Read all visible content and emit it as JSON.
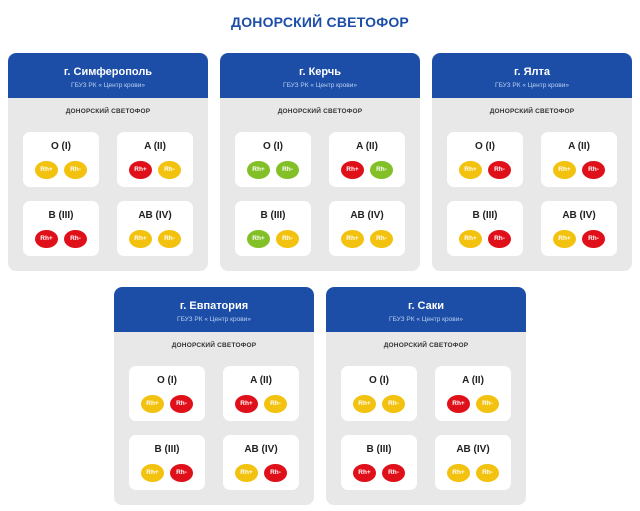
{
  "page": {
    "title": "ДОНОРСКИЙ СВЕТОФОР"
  },
  "colors": {
    "yellow": "#f2c20f",
    "red": "#e0101a",
    "green": "#83c028",
    "header_blue": "#1c4ea8"
  },
  "cards": [
    {
      "city": "г. Симферополь",
      "org": "ГБУЗ РК « Центр крови»",
      "subtitle": "ДОНОРСКИЙ СВЕТОФОР",
      "groups": [
        {
          "label": "O (I)",
          "rh_plus": {
            "text": "Rh+",
            "status": "yellow"
          },
          "rh_minus": {
            "text": "Rh-",
            "status": "yellow"
          }
        },
        {
          "label": "A (II)",
          "rh_plus": {
            "text": "Rh+",
            "status": "red"
          },
          "rh_minus": {
            "text": "Rh-",
            "status": "yellow"
          }
        },
        {
          "label": "B (III)",
          "rh_plus": {
            "text": "Rh+",
            "status": "red"
          },
          "rh_minus": {
            "text": "Rh-",
            "status": "red"
          }
        },
        {
          "label": "AB (IV)",
          "rh_plus": {
            "text": "Rh+",
            "status": "yellow"
          },
          "rh_minus": {
            "text": "Rh-",
            "status": "yellow"
          }
        }
      ]
    },
    {
      "city": "г. Керчь",
      "org": "ГБУЗ РК « Центр крови»",
      "subtitle": "ДОНОРСКИЙ СВЕТОФОР",
      "groups": [
        {
          "label": "O (I)",
          "rh_plus": {
            "text": "Rh+",
            "status": "green"
          },
          "rh_minus": {
            "text": "Rh-",
            "status": "green"
          }
        },
        {
          "label": "A (II)",
          "rh_plus": {
            "text": "Rh+",
            "status": "red"
          },
          "rh_minus": {
            "text": "Rh-",
            "status": "green"
          }
        },
        {
          "label": "B (III)",
          "rh_plus": {
            "text": "Rh+",
            "status": "green"
          },
          "rh_minus": {
            "text": "Rh-",
            "status": "yellow"
          }
        },
        {
          "label": "AB (IV)",
          "rh_plus": {
            "text": "Rh+",
            "status": "yellow"
          },
          "rh_minus": {
            "text": "Rh-",
            "status": "yellow"
          }
        }
      ]
    },
    {
      "city": "г. Ялта",
      "org": "ГБУЗ РК « Центр крови»",
      "subtitle": "ДОНОРСКИЙ СВЕТОФОР",
      "groups": [
        {
          "label": "O (I)",
          "rh_plus": {
            "text": "Rh+",
            "status": "yellow"
          },
          "rh_minus": {
            "text": "Rh-",
            "status": "red"
          }
        },
        {
          "label": "A (II)",
          "rh_plus": {
            "text": "Rh+",
            "status": "yellow"
          },
          "rh_minus": {
            "text": "Rh-",
            "status": "red"
          }
        },
        {
          "label": "B (III)",
          "rh_plus": {
            "text": "Rh+",
            "status": "yellow"
          },
          "rh_minus": {
            "text": "Rh-",
            "status": "red"
          }
        },
        {
          "label": "AB (IV)",
          "rh_plus": {
            "text": "Rh+",
            "status": "yellow"
          },
          "rh_minus": {
            "text": "Rh-",
            "status": "red"
          }
        }
      ]
    },
    {
      "city": "г. Евпатория",
      "org": "ГБУЗ РК « Центр крови»",
      "subtitle": "ДОНОРСКИЙ СВЕТОФОР",
      "groups": [
        {
          "label": "O (I)",
          "rh_plus": {
            "text": "Rh+",
            "status": "yellow"
          },
          "rh_minus": {
            "text": "Rh-",
            "status": "red"
          }
        },
        {
          "label": "A (II)",
          "rh_plus": {
            "text": "Rh+",
            "status": "red"
          },
          "rh_minus": {
            "text": "Rh-",
            "status": "yellow"
          }
        },
        {
          "label": "B (III)",
          "rh_plus": {
            "text": "Rh+",
            "status": "yellow"
          },
          "rh_minus": {
            "text": "Rh-",
            "status": "red"
          }
        },
        {
          "label": "AB (IV)",
          "rh_plus": {
            "text": "Rh+",
            "status": "yellow"
          },
          "rh_minus": {
            "text": "Rh-",
            "status": "red"
          }
        }
      ]
    },
    {
      "city": "г. Саки",
      "org": "ГБУЗ РК « Центр крови»",
      "subtitle": "ДОНОРСКИЙ СВЕТОФОР",
      "groups": [
        {
          "label": "O (I)",
          "rh_plus": {
            "text": "Rh+",
            "status": "yellow"
          },
          "rh_minus": {
            "text": "Rh-",
            "status": "yellow"
          }
        },
        {
          "label": "A (II)",
          "rh_plus": {
            "text": "Rh+",
            "status": "red"
          },
          "rh_minus": {
            "text": "Rh-",
            "status": "yellow"
          }
        },
        {
          "label": "B (III)",
          "rh_plus": {
            "text": "Rh+",
            "status": "red"
          },
          "rh_minus": {
            "text": "Rh-",
            "status": "red"
          }
        },
        {
          "label": "AB (IV)",
          "rh_plus": {
            "text": "Rh+",
            "status": "yellow"
          },
          "rh_minus": {
            "text": "Rh-",
            "status": "yellow"
          }
        }
      ]
    }
  ]
}
